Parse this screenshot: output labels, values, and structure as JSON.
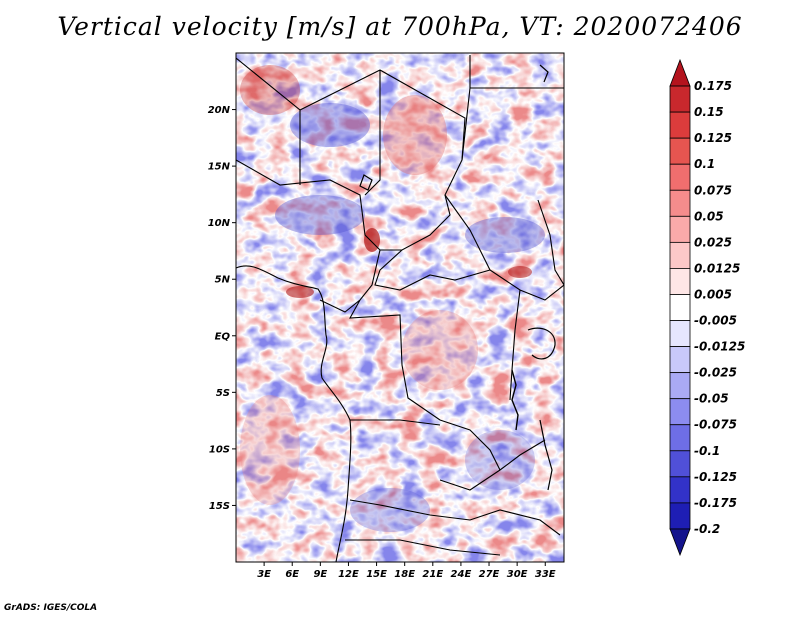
{
  "title": "Vertical velocity [m/s] at 700hPa, VT: 2020072406",
  "credit": "GrADS: IGES/COLA",
  "map": {
    "lon_range": [
      0,
      35
    ],
    "lat_range": [
      -20,
      25
    ],
    "lat_ticks": [
      {
        "value": 20,
        "label": "20N"
      },
      {
        "value": 15,
        "label": "15N"
      },
      {
        "value": 10,
        "label": "10N"
      },
      {
        "value": 5,
        "label": "5N"
      },
      {
        "value": 0,
        "label": "EQ"
      },
      {
        "value": -5,
        "label": "5S"
      },
      {
        "value": -10,
        "label": "10S"
      },
      {
        "value": -15,
        "label": "15S"
      }
    ],
    "lon_ticks": [
      {
        "value": 3,
        "label": "3E"
      },
      {
        "value": 6,
        "label": "6E"
      },
      {
        "value": 9,
        "label": "9E"
      },
      {
        "value": 12,
        "label": "12E"
      },
      {
        "value": 15,
        "label": "15E"
      },
      {
        "value": 18,
        "label": "18E"
      },
      {
        "value": 21,
        "label": "21E"
      },
      {
        "value": 24,
        "label": "24E"
      },
      {
        "value": 27,
        "label": "27E"
      },
      {
        "value": 30,
        "label": "30E"
      },
      {
        "value": 33,
        "label": "33E"
      }
    ]
  },
  "colorbar": {
    "units": "m/s",
    "levels": [
      "0.175",
      "0.15",
      "0.125",
      "0.1",
      "0.075",
      "0.05",
      "0.025",
      "0.0125",
      "0.005",
      "-0.005",
      "-0.0125",
      "-0.025",
      "-0.05",
      "-0.075",
      "-0.1",
      "-0.125",
      "-0.175",
      "-0.2"
    ],
    "colors": [
      "#b4141e",
      "#c8282d",
      "#dc3c3c",
      "#e65550",
      "#f06e6e",
      "#f58c8c",
      "#faaaaa",
      "#fcc8c8",
      "#fee6e6",
      "#ffffff",
      "#e6e6fe",
      "#c8c8fa",
      "#aaaaf5",
      "#8c8cf0",
      "#6e6ee6",
      "#5050d8",
      "#3232c8",
      "#1e1eb4",
      "#14148c"
    ]
  }
}
